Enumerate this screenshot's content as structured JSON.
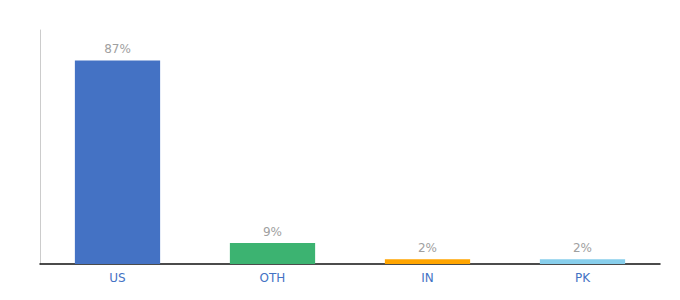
{
  "chart_data": {
    "type": "bar",
    "categories": [
      "US",
      "OTH",
      "IN",
      "PK"
    ],
    "values": [
      87,
      9,
      2,
      2
    ],
    "value_labels": [
      "87%",
      "9%",
      "2%",
      "2%"
    ],
    "colors": [
      "#4472c4",
      "#3cb371",
      "#ffa500",
      "#87ceeb"
    ],
    "ylim": [
      0,
      100
    ],
    "grid": false,
    "data_labels": true,
    "tick_labels": "x"
  }
}
